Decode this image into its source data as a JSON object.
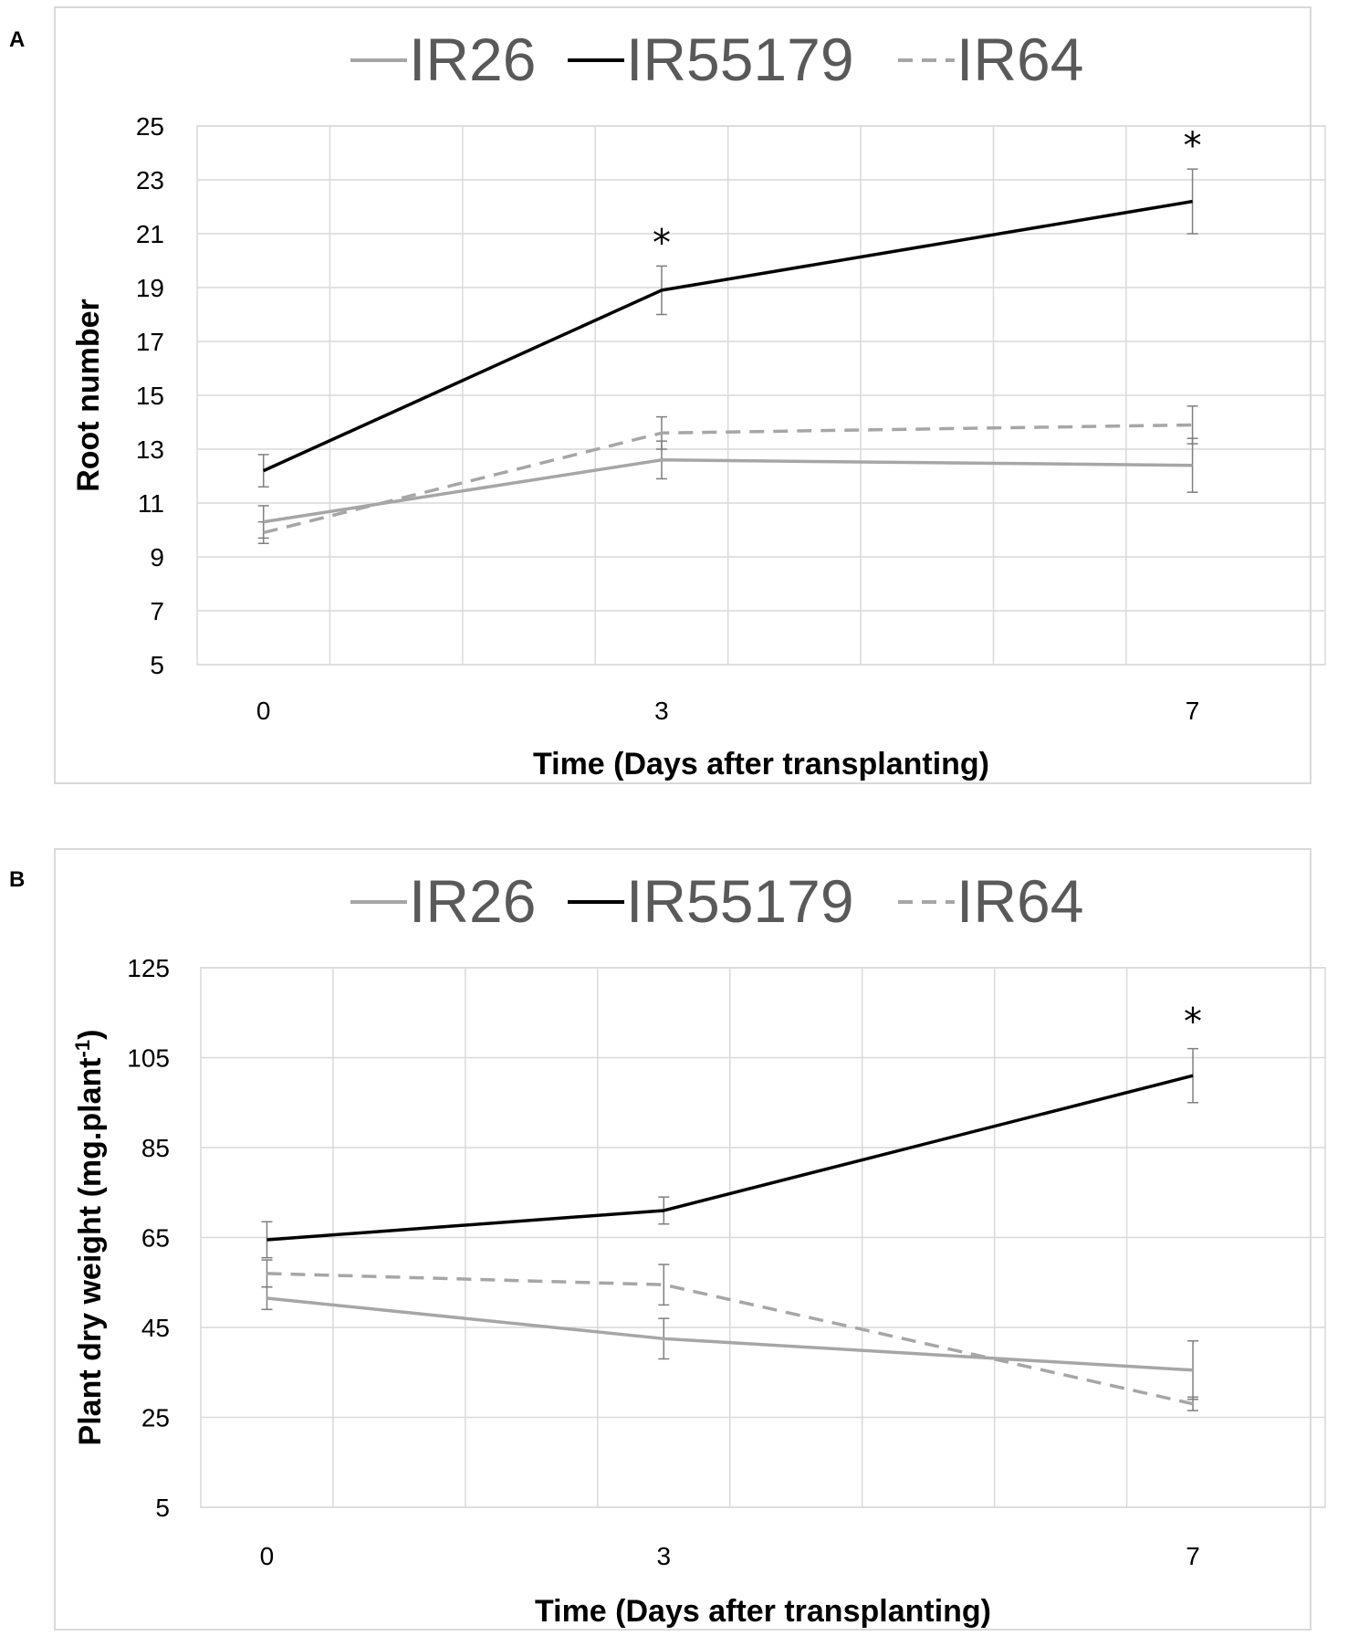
{
  "panels": {
    "a": {
      "letter": "A"
    },
    "b": {
      "letter": "B"
    }
  },
  "colors": {
    "IR26": "#a6a6a6",
    "IR55179": "#000000",
    "IR64": "#a6a6a6",
    "grid": "#d9d9d9",
    "frame": "#d9d9d9"
  },
  "chart_data": [
    {
      "type": "line",
      "panel": "A",
      "title": "",
      "xlabel": "Time (Days after transplanting)",
      "ylabel": "Root number",
      "x": [
        "0",
        "3",
        "7"
      ],
      "x_values": [
        0,
        3,
        7
      ],
      "xlim": [
        -0.5,
        8.0
      ],
      "ylim": [
        5,
        25
      ],
      "yticks": [
        5,
        7,
        9,
        11,
        13,
        15,
        17,
        19,
        21,
        23,
        25
      ],
      "grid": true,
      "legend_position": "top",
      "series": [
        {
          "name": "IR26",
          "style": "solid",
          "values": [
            10.3,
            12.6,
            12.4
          ],
          "errors": [
            0.6,
            0.7,
            1.0
          ]
        },
        {
          "name": "IR55179",
          "style": "solid",
          "values": [
            12.2,
            18.9,
            22.2
          ],
          "errors": [
            0.6,
            0.9,
            1.2
          ]
        },
        {
          "name": "IR64",
          "style": "dashed",
          "values": [
            9.9,
            13.6,
            13.9
          ],
          "errors": [
            0.4,
            0.6,
            0.7
          ]
        }
      ],
      "annotations": [
        {
          "text": "*",
          "x": 3
        },
        {
          "text": "*",
          "x": 7
        }
      ]
    },
    {
      "type": "line",
      "panel": "B",
      "title": "",
      "xlabel": "Time (Days after transplanting)",
      "ylabel_main": "Plant dry weight (mg.plant",
      "ylabel_sup": "-1",
      "ylabel_end": ")",
      "x": [
        "0",
        "3",
        "7"
      ],
      "x_values": [
        0,
        3,
        7
      ],
      "xlim": [
        -0.5,
        8.0
      ],
      "ylim": [
        5,
        125
      ],
      "yticks": [
        5,
        25,
        45,
        65,
        85,
        105,
        125
      ],
      "grid": true,
      "legend_position": "top",
      "series": [
        {
          "name": "IR26",
          "style": "solid",
          "values": [
            51.5,
            42.5,
            35.5
          ],
          "errors": [
            2.5,
            4.5,
            6.5
          ]
        },
        {
          "name": "IR55179",
          "style": "solid",
          "values": [
            64.5,
            71.0,
            101.0
          ],
          "errors": [
            4.0,
            3.0,
            6.0
          ]
        },
        {
          "name": "IR64",
          "style": "dashed",
          "values": [
            57.0,
            54.5,
            28.0
          ],
          "errors": [
            3.0,
            4.5,
            1.5
          ]
        }
      ],
      "annotations": [
        {
          "text": "*",
          "x": 7
        }
      ]
    }
  ]
}
